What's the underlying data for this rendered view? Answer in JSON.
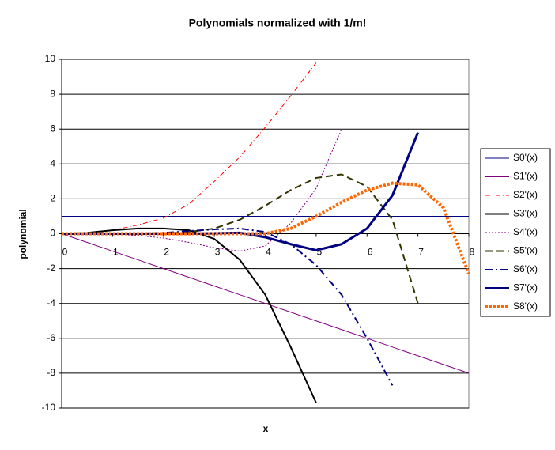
{
  "chart_data": {
    "type": "line",
    "title": "Polynomials normalized with 1/m!",
    "x_label": "x",
    "y_label": "polynomial",
    "x": [
      0,
      0.5,
      1,
      1.5,
      2,
      2.5,
      3,
      3.5,
      4,
      4.5,
      5,
      5.5,
      6,
      6.5,
      7,
      7.5,
      8
    ],
    "xlim": [
      0,
      8
    ],
    "xticks": [
      0,
      1,
      2,
      3,
      4,
      5,
      6,
      7,
      8
    ],
    "ylim": [
      -10,
      10
    ],
    "yticks": [
      -10,
      -8,
      -6,
      -4,
      -2,
      0,
      2,
      4,
      6,
      8,
      10
    ],
    "grid": true,
    "legend": "right",
    "series": [
      {
        "name": "S0'(x)",
        "color": "#000080",
        "width": 1,
        "dash": "none",
        "values": [
          1,
          1,
          1,
          1,
          1,
          1,
          1,
          1,
          1,
          1,
          1,
          1,
          1,
          1,
          1,
          1,
          1
        ]
      },
      {
        "name": "S1'(x)",
        "color": "#800080",
        "width": 1,
        "dash": "none",
        "values": [
          0,
          -0.5,
          -1,
          -1.5,
          -2,
          -2.5,
          -3,
          -3.5,
          -4,
          -4.5,
          -5,
          -5.5,
          -6,
          -6.5,
          -7,
          -7.5,
          -8
        ]
      },
      {
        "name": "S2'(x)",
        "color": "#ff0000",
        "width": 1,
        "dash": "6 3 1 3",
        "values": [
          0,
          0.05,
          0.2,
          0.5,
          0.9,
          1.7,
          3,
          4.4,
          6.1,
          7.9,
          9.8,
          null,
          null,
          null,
          null,
          null,
          null
        ]
      },
      {
        "name": "S3'(x)",
        "color": "#000000",
        "width": 2,
        "dash": "none",
        "values": [
          0,
          0.05,
          0.2,
          0.3,
          0.3,
          0.2,
          -0.3,
          -1.5,
          -3.5,
          -6.5,
          -9.7,
          null,
          null,
          null,
          null,
          null,
          null
        ]
      },
      {
        "name": "S4'(x)",
        "color": "#800080",
        "width": 1,
        "dash": "2 2",
        "values": [
          0,
          0,
          -0.02,
          -0.1,
          -0.25,
          -0.5,
          -0.8,
          -1,
          -0.7,
          0.6,
          2.6,
          6,
          null,
          null,
          null,
          null,
          null
        ]
      },
      {
        "name": "S5'(x)",
        "color": "#333300",
        "width": 2,
        "dash": "9 5",
        "values": [
          0,
          0,
          0,
          0,
          0.02,
          0.1,
          0.3,
          0.8,
          1.6,
          2.5,
          3.2,
          3.4,
          2.7,
          0.8,
          -4,
          null,
          null
        ]
      },
      {
        "name": "S6'(x)",
        "color": "#000080",
        "width": 2,
        "dash": "9 4 2 4",
        "values": [
          0,
          0,
          0,
          0.02,
          0.05,
          0.15,
          0.25,
          0.3,
          0.1,
          -0.6,
          -1.8,
          -3.5,
          -6,
          -8.7,
          null,
          null,
          null
        ]
      },
      {
        "name": "S7'(x)",
        "color": "#000080",
        "width": 3,
        "dash": "none",
        "values": [
          0,
          0,
          0,
          0,
          0,
          0,
          0.02,
          0.05,
          -0.2,
          -0.6,
          -0.95,
          -0.6,
          0.3,
          2.2,
          5.8,
          null,
          null
        ]
      },
      {
        "name": "S8'(x)",
        "color": "#ff6600",
        "width": 4,
        "dash": "3 2",
        "values": [
          0,
          0,
          0,
          0,
          0,
          0,
          0,
          0,
          0,
          0.3,
          1,
          1.8,
          2.5,
          2.9,
          2.8,
          1.5,
          -2.3
        ]
      }
    ]
  }
}
